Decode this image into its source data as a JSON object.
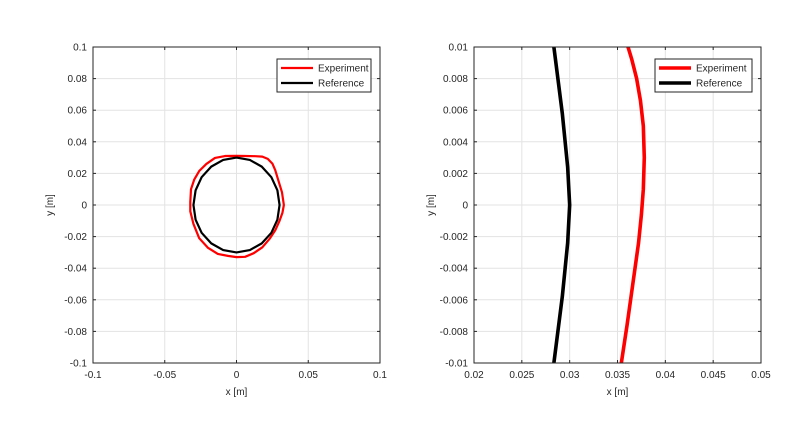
{
  "chart_data": [
    {
      "type": "line",
      "xlabel": "x [m]",
      "ylabel": "y [m]",
      "xlim": [
        -0.1,
        0.1
      ],
      "ylim": [
        -0.1,
        0.1
      ],
      "xticks": [
        -0.1,
        -0.05,
        0,
        0.05,
        0.1
      ],
      "xtick_labels": [
        "-0.1",
        "-0.05",
        "0",
        "0.05",
        "0.1"
      ],
      "yticks": [
        -0.1,
        -0.08,
        -0.06,
        -0.04,
        -0.02,
        0,
        0.02,
        0.04,
        0.06,
        0.08,
        0.1
      ],
      "ytick_labels": [
        "-0.1",
        "-0.08",
        "-0.06",
        "-0.04",
        "-0.02",
        "0",
        "0.02",
        "0.04",
        "0.06",
        "0.08",
        "0.1"
      ],
      "grid": true,
      "legend_position": "top-right",
      "series": [
        {
          "name": "Experiment",
          "color": "#ff0000",
          "x": [
            0.033,
            0.0317,
            0.029,
            0.027,
            0.025,
            0.0218,
            0.018,
            0.013,
            0.006,
            0.0,
            -0.008,
            -0.015,
            -0.021,
            -0.026,
            -0.0295,
            -0.0317,
            -0.0322,
            -0.0322,
            -0.03,
            -0.026,
            -0.02,
            -0.013,
            -0.006,
            0.0,
            0.006,
            0.012,
            0.018,
            0.023,
            0.027,
            0.03,
            0.032,
            0.033
          ],
          "y": [
            0.0,
            0.008,
            0.016,
            0.022,
            0.0262,
            0.0292,
            0.0306,
            0.0309,
            0.031,
            0.0311,
            0.031,
            0.0298,
            0.026,
            0.0215,
            0.016,
            0.01,
            0.002,
            -0.004,
            -0.012,
            -0.021,
            -0.027,
            -0.031,
            -0.0322,
            -0.033,
            -0.0328,
            -0.0305,
            -0.0268,
            -0.0215,
            -0.016,
            -0.01,
            -0.005,
            0.0
          ]
        },
        {
          "name": "Reference",
          "color": "#000000",
          "x": [
            0.03,
            0.0285,
            0.0243,
            0.0176,
            0.0093,
            0.0,
            -0.0093,
            -0.0176,
            -0.0243,
            -0.0285,
            -0.03,
            -0.0285,
            -0.0243,
            -0.0176,
            -0.0093,
            0.0,
            0.0093,
            0.0176,
            0.0243,
            0.0285,
            0.03
          ],
          "y": [
            0.0,
            0.0093,
            0.0176,
            0.0243,
            0.0285,
            0.03,
            0.0285,
            0.0243,
            0.0176,
            0.0093,
            0.0,
            -0.0093,
            -0.0176,
            -0.0243,
            -0.0285,
            -0.03,
            -0.0285,
            -0.0243,
            -0.0176,
            -0.0093,
            0.0
          ]
        }
      ]
    },
    {
      "type": "line",
      "xlabel": "x [m]",
      "ylabel": "y [m]",
      "xlim": [
        0.02,
        0.05
      ],
      "ylim": [
        -0.01,
        0.01
      ],
      "xticks": [
        0.02,
        0.025,
        0.03,
        0.035,
        0.04,
        0.045,
        0.05
      ],
      "xtick_labels": [
        "0.02",
        "0.025",
        "0.03",
        "0.035",
        "0.04",
        "0.045",
        "0.05"
      ],
      "yticks": [
        -0.01,
        -0.008,
        -0.006,
        -0.004,
        -0.002,
        0,
        0.002,
        0.004,
        0.006,
        0.008,
        0.01
      ],
      "ytick_labels": [
        "-0.01",
        "-0.008",
        "-0.006",
        "-0.004",
        "-0.002",
        "0",
        "0.002",
        "0.004",
        "0.006",
        "0.008",
        "0.01"
      ],
      "grid": true,
      "legend_position": "top-right",
      "series": [
        {
          "name": "Experiment",
          "color": "#ff0000",
          "x": [
            0.0354,
            0.036,
            0.0366,
            0.0372,
            0.0375,
            0.0377,
            0.0378,
            0.0377,
            0.0374,
            0.037,
            0.0365,
            0.0361
          ],
          "y": [
            -0.01,
            -0.0076,
            -0.005,
            -0.0024,
            -0.0006,
            0.001,
            0.003,
            0.005,
            0.0066,
            0.008,
            0.0092,
            0.01
          ]
        },
        {
          "name": "Reference",
          "color": "#000000",
          "x": [
            0.02835,
            0.02923,
            0.02979,
            0.03,
            0.02979,
            0.02923,
            0.02835
          ],
          "y": [
            -0.01,
            -0.0058,
            -0.0024,
            0.0,
            0.0024,
            0.0058,
            0.01
          ]
        }
      ]
    }
  ]
}
